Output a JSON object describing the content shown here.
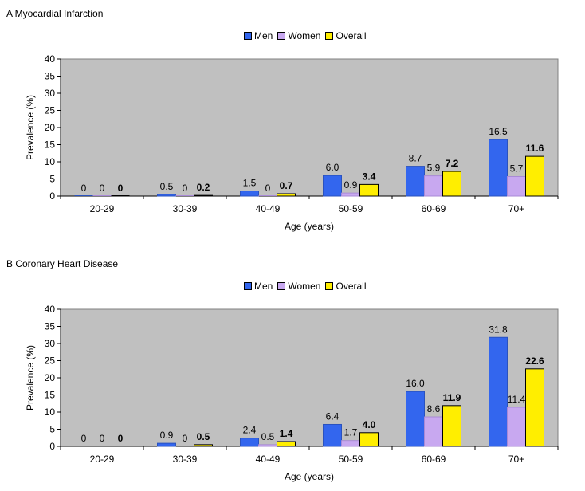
{
  "legend_colors": {
    "Men": "#3366ee",
    "Women": "#c8a8f0",
    "Overall": "#ffee00"
  },
  "chart_data": [
    {
      "type": "bar",
      "title": "A Myocardial Infarction",
      "xlabel": "Age (years)",
      "ylabel": "Prevalence (%)",
      "ylim": [
        0,
        40
      ],
      "yticks": [
        0,
        5,
        10,
        15,
        20,
        25,
        30,
        35,
        40
      ],
      "categories": [
        "20-29",
        "30-39",
        "40-49",
        "50-59",
        "60-69",
        "70+"
      ],
      "series": [
        {
          "name": "Men",
          "values": [
            0,
            0.5,
            1.5,
            6.0,
            8.7,
            16.5
          ],
          "labels": [
            "0",
            "0.5",
            "1.5",
            "6.0",
            "8.7",
            "16.5"
          ]
        },
        {
          "name": "Women",
          "values": [
            0,
            0,
            0,
            0.9,
            5.9,
            5.7
          ],
          "labels": [
            "0",
            "0",
            "0",
            "0.9",
            "5.9",
            "5.7"
          ]
        },
        {
          "name": "Overall",
          "values": [
            0,
            0.2,
            0.7,
            3.4,
            7.2,
            11.6
          ],
          "labels": [
            "0",
            "0.2",
            "0.7",
            "3.4",
            "7.2",
            "11.6"
          ]
        }
      ]
    },
    {
      "type": "bar",
      "title": "B Coronary Heart Disease",
      "xlabel": "Age (years)",
      "ylabel": "Prevalence (%)",
      "ylim": [
        0,
        40
      ],
      "yticks": [
        0,
        5,
        10,
        15,
        20,
        25,
        30,
        35,
        40
      ],
      "categories": [
        "20-29",
        "30-39",
        "40-49",
        "50-59",
        "60-69",
        "70+"
      ],
      "series": [
        {
          "name": "Men",
          "values": [
            0,
            0.9,
            2.4,
            6.4,
            16.0,
            31.8
          ],
          "labels": [
            "0",
            "0.9",
            "2.4",
            "6.4",
            "16.0",
            "31.8"
          ]
        },
        {
          "name": "Women",
          "values": [
            0,
            0,
            0.5,
            1.7,
            8.6,
            11.4
          ],
          "labels": [
            "0",
            "0",
            "0.5",
            "1.7",
            "8.6",
            "11.4"
          ]
        },
        {
          "name": "Overall",
          "values": [
            0,
            0.5,
            1.4,
            4.0,
            11.9,
            22.6
          ],
          "labels": [
            "0",
            "0.5",
            "1.4",
            "4.0",
            "11.9",
            "22.6"
          ]
        }
      ]
    }
  ]
}
